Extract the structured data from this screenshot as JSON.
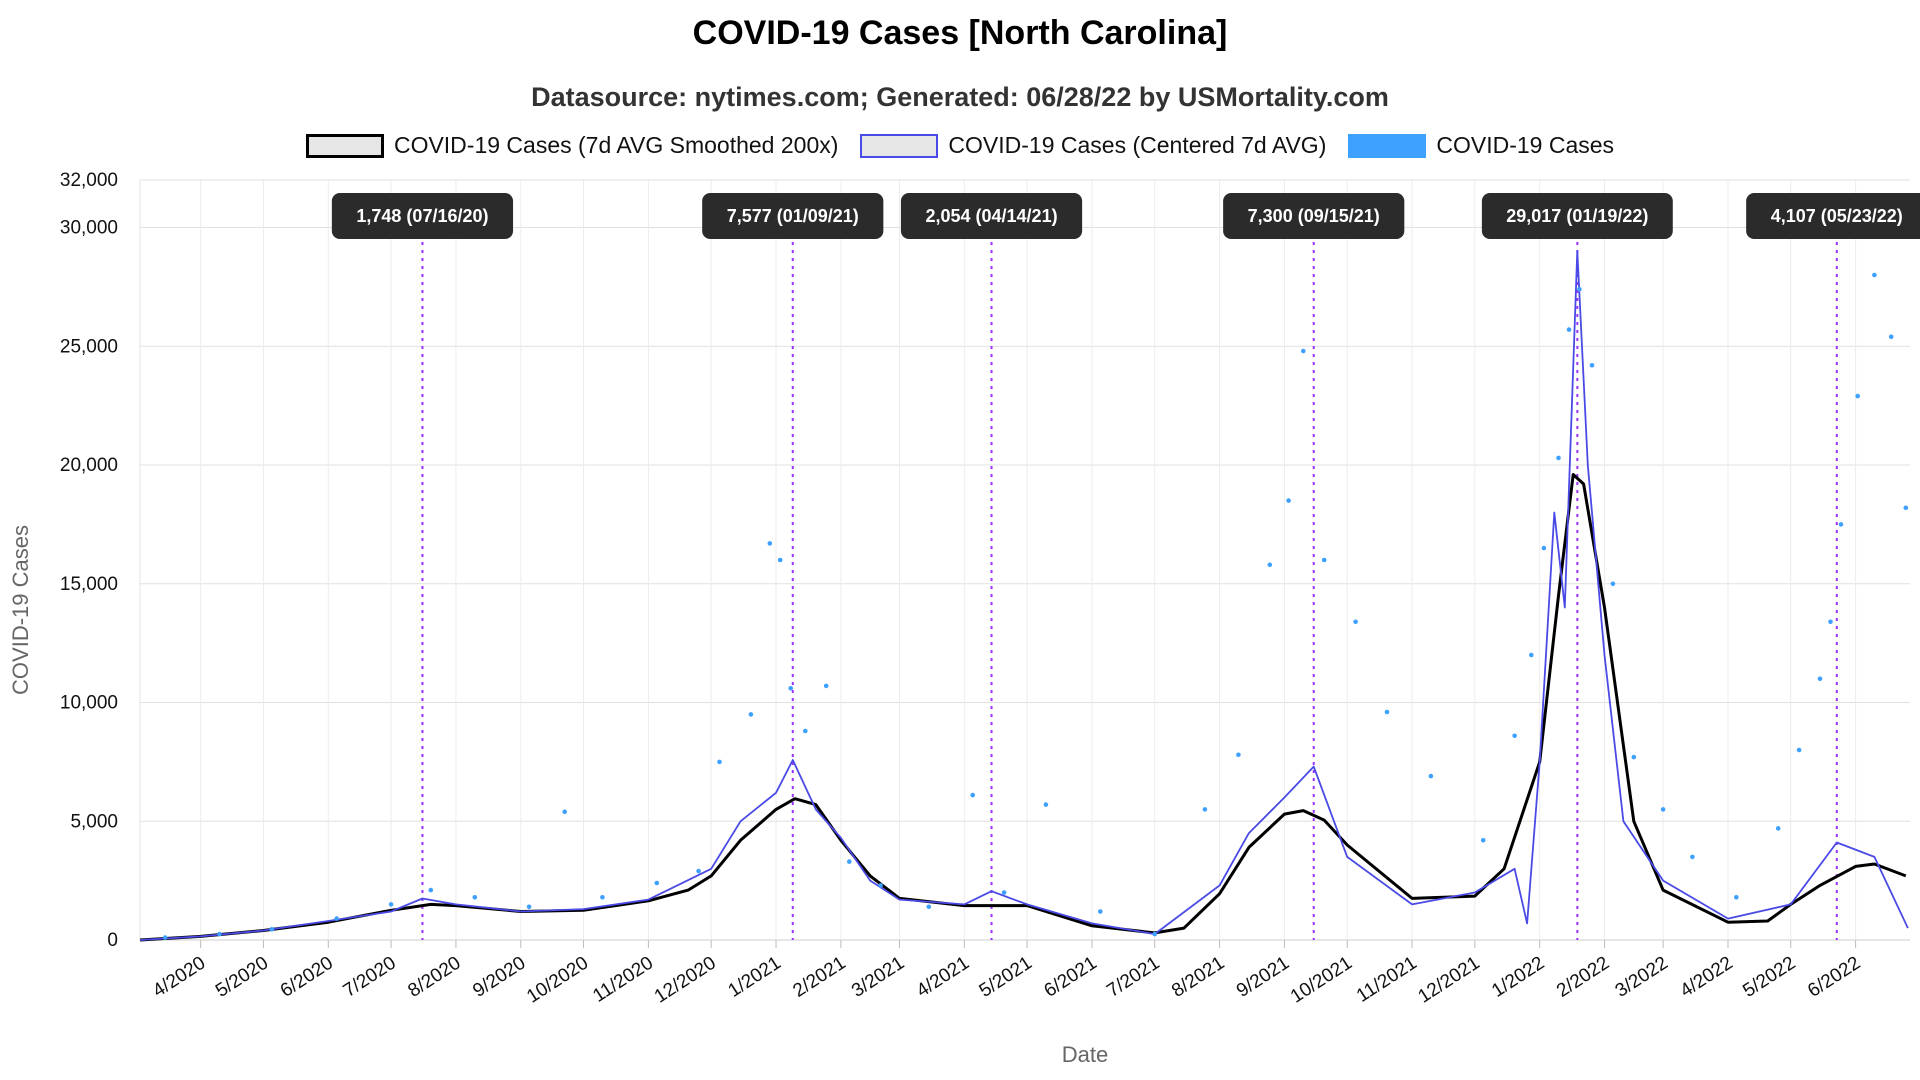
{
  "chart": {
    "title": "COVID-19 Cases [North Carolina]",
    "subtitle": "Datasource: nytimes.com; Generated: 06/28/22 by USMortality.com",
    "legend": [
      {
        "label": "COVID-19 Cases (7d AVG Smoothed 200x)",
        "key": "smooth"
      },
      {
        "label": "COVID-19 Cases (Centered 7d AVG)",
        "key": "avg"
      },
      {
        "label": "COVID-19 Cases",
        "key": "cases"
      }
    ]
  },
  "colors": {
    "smooth": "#000000",
    "avg": "#4a4ae6",
    "cases": "#3ea0ff",
    "annotation_line": "#9b30ff",
    "annotation_bg": "#2b2b2b",
    "grid": "#e0e0e0"
  },
  "chart_data": {
    "type": "line",
    "xlabel": "Date",
    "ylabel": "COVID-19 Cases",
    "ylim": [
      0,
      32000
    ],
    "yticks": [
      {
        "value": 0,
        "label": "0"
      },
      {
        "value": 5000,
        "label": "5,000"
      },
      {
        "value": 10000,
        "label": "10,000"
      },
      {
        "value": 15000,
        "label": "15,000"
      },
      {
        "value": 20000,
        "label": "20,000"
      },
      {
        "value": 25000,
        "label": "25,000"
      },
      {
        "value": 30000,
        "label": "30,000"
      },
      {
        "value": 32000,
        "label": "32,000"
      }
    ],
    "xlim": [
      "2020-03-03",
      "2022-06-27"
    ],
    "xticks": [
      {
        "date": "2020-04-01",
        "label": "4/2020"
      },
      {
        "date": "2020-05-01",
        "label": "5/2020"
      },
      {
        "date": "2020-06-01",
        "label": "6/2020"
      },
      {
        "date": "2020-07-01",
        "label": "7/2020"
      },
      {
        "date": "2020-08-01",
        "label": "8/2020"
      },
      {
        "date": "2020-09-01",
        "label": "9/2020"
      },
      {
        "date": "2020-10-01",
        "label": "10/2020"
      },
      {
        "date": "2020-11-01",
        "label": "11/2020"
      },
      {
        "date": "2020-12-01",
        "label": "12/2020"
      },
      {
        "date": "2021-01-01",
        "label": "1/2021"
      },
      {
        "date": "2021-02-01",
        "label": "2/2021"
      },
      {
        "date": "2021-03-01",
        "label": "3/2021"
      },
      {
        "date": "2021-04-01",
        "label": "4/2021"
      },
      {
        "date": "2021-05-01",
        "label": "5/2021"
      },
      {
        "date": "2021-06-01",
        "label": "6/2021"
      },
      {
        "date": "2021-07-01",
        "label": "7/2021"
      },
      {
        "date": "2021-08-01",
        "label": "8/2021"
      },
      {
        "date": "2021-09-01",
        "label": "9/2021"
      },
      {
        "date": "2021-10-01",
        "label": "10/2021"
      },
      {
        "date": "2021-11-01",
        "label": "11/2021"
      },
      {
        "date": "2021-12-01",
        "label": "12/2021"
      },
      {
        "date": "2022-01-01",
        "label": "1/2022"
      },
      {
        "date": "2022-02-01",
        "label": "2/2022"
      },
      {
        "date": "2022-03-01",
        "label": "3/2022"
      },
      {
        "date": "2022-04-01",
        "label": "4/2022"
      },
      {
        "date": "2022-05-01",
        "label": "5/2022"
      },
      {
        "date": "2022-06-01",
        "label": "6/2022"
      }
    ],
    "annotations": [
      {
        "date": "2020-07-16",
        "label": "1,748 (07/16/20)"
      },
      {
        "date": "2021-01-09",
        "label": "7,577 (01/09/21)"
      },
      {
        "date": "2021-04-14",
        "label": "2,054 (04/14/21)"
      },
      {
        "date": "2021-09-15",
        "label": "7,300 (09/15/21)"
      },
      {
        "date": "2022-01-19",
        "label": "29,017 (01/19/22)"
      },
      {
        "date": "2022-05-23",
        "label": "4,107 (05/23/22)"
      }
    ],
    "series": [
      {
        "name": "COVID-19 Cases (7d AVG Smoothed 200x)",
        "key": "smooth",
        "x": [
          "2020-03-03",
          "2020-04-01",
          "2020-05-01",
          "2020-06-01",
          "2020-07-01",
          "2020-07-20",
          "2020-08-01",
          "2020-09-01",
          "2020-10-01",
          "2020-11-01",
          "2020-11-20",
          "2020-12-01",
          "2020-12-15",
          "2021-01-01",
          "2021-01-10",
          "2021-01-20",
          "2021-02-01",
          "2021-02-15",
          "2021-03-01",
          "2021-04-01",
          "2021-05-01",
          "2021-06-01",
          "2021-07-01",
          "2021-07-15",
          "2021-08-01",
          "2021-08-15",
          "2021-09-01",
          "2021-09-10",
          "2021-09-20",
          "2021-10-01",
          "2021-11-01",
          "2021-12-01",
          "2021-12-15",
          "2022-01-01",
          "2022-01-10",
          "2022-01-17",
          "2022-01-22",
          "2022-02-01",
          "2022-02-15",
          "2022-03-01",
          "2022-04-01",
          "2022-04-20",
          "2022-05-01",
          "2022-05-15",
          "2022-06-01",
          "2022-06-10",
          "2022-06-25"
        ],
        "values": [
          0,
          150,
          400,
          750,
          1250,
          1500,
          1450,
          1200,
          1250,
          1650,
          2100,
          2700,
          4200,
          5500,
          5950,
          5700,
          4200,
          2700,
          1750,
          1450,
          1450,
          600,
          300,
          500,
          1950,
          3900,
          5300,
          5450,
          5050,
          4000,
          1750,
          1850,
          3000,
          7500,
          14500,
          19600,
          19200,
          14000,
          5000,
          2100,
          750,
          800,
          1500,
          2300,
          3100,
          3200,
          2700
        ]
      },
      {
        "name": "COVID-19 Cases (Centered 7d AVG)",
        "key": "avg",
        "x": [
          "2020-03-03",
          "2020-04-01",
          "2020-05-01",
          "2020-06-01",
          "2020-07-01",
          "2020-07-16",
          "2020-08-01",
          "2020-09-01",
          "2020-10-01",
          "2020-11-01",
          "2020-12-01",
          "2020-12-15",
          "2021-01-01",
          "2021-01-09",
          "2021-01-20",
          "2021-02-01",
          "2021-02-15",
          "2021-03-01",
          "2021-04-01",
          "2021-04-14",
          "2021-05-01",
          "2021-06-01",
          "2021-07-01",
          "2021-08-01",
          "2021-08-15",
          "2021-09-01",
          "2021-09-15",
          "2021-10-01",
          "2021-11-01",
          "2021-12-01",
          "2021-12-20",
          "2021-12-26",
          "2022-01-01",
          "2022-01-08",
          "2022-01-13",
          "2022-01-19",
          "2022-01-24",
          "2022-02-01",
          "2022-02-10",
          "2022-03-01",
          "2022-04-01",
          "2022-05-01",
          "2022-05-23",
          "2022-06-10",
          "2022-06-26"
        ],
        "values": [
          0,
          150,
          400,
          800,
          1200,
          1748,
          1500,
          1200,
          1300,
          1700,
          3000,
          5000,
          6200,
          7577,
          5500,
          4300,
          2500,
          1700,
          1500,
          2054,
          1500,
          700,
          250,
          2300,
          4500,
          6000,
          7300,
          3500,
          1500,
          2000,
          3000,
          700,
          7500,
          18000,
          14000,
          29017,
          20000,
          12000,
          5000,
          2500,
          900,
          1500,
          4107,
          3500,
          500
        ]
      },
      {
        "name": "COVID-19 Cases",
        "key": "cases",
        "x": [
          "2020-03-15",
          "2020-04-10",
          "2020-05-05",
          "2020-06-05",
          "2020-07-01",
          "2020-07-20",
          "2020-08-10",
          "2020-09-05",
          "2020-09-22",
          "2020-10-10",
          "2020-11-05",
          "2020-11-25",
          "2020-12-05",
          "2020-12-20",
          "2020-12-29",
          "2021-01-03",
          "2021-01-08",
          "2021-01-15",
          "2021-01-25",
          "2021-02-05",
          "2021-02-20",
          "2021-03-15",
          "2021-04-05",
          "2021-04-20",
          "2021-05-10",
          "2021-06-05",
          "2021-07-01",
          "2021-07-25",
          "2021-08-10",
          "2021-08-25",
          "2021-09-03",
          "2021-09-10",
          "2021-09-20",
          "2021-10-05",
          "2021-10-20",
          "2021-11-10",
          "2021-12-05",
          "2021-12-20",
          "2021-12-28",
          "2022-01-03",
          "2022-01-10",
          "2022-01-15",
          "2022-01-20",
          "2022-01-26",
          "2022-02-05",
          "2022-02-15",
          "2022-03-01",
          "2022-03-15",
          "2022-04-05",
          "2022-04-25",
          "2022-05-05",
          "2022-05-15",
          "2022-05-20",
          "2022-05-25",
          "2022-06-02",
          "2022-06-10",
          "2022-06-18",
          "2022-06-25"
        ],
        "values": [
          100,
          250,
          450,
          900,
          1500,
          2100,
          1800,
          1400,
          5400,
          1800,
          2400,
          2900,
          7500,
          9500,
          16700,
          16000,
          10600,
          8800,
          10700,
          3300,
          2300,
          1400,
          6100,
          2000,
          5700,
          1200,
          250,
          5500,
          7800,
          15800,
          18500,
          24800,
          16000,
          13400,
          9600,
          6900,
          4200,
          8600,
          12000,
          16500,
          20300,
          25700,
          27400,
          24200,
          15000,
          7700,
          5500,
          3500,
          1800,
          4700,
          8000,
          11000,
          13400,
          17500,
          22900,
          28000,
          25400,
          18200
        ]
      }
    ]
  }
}
